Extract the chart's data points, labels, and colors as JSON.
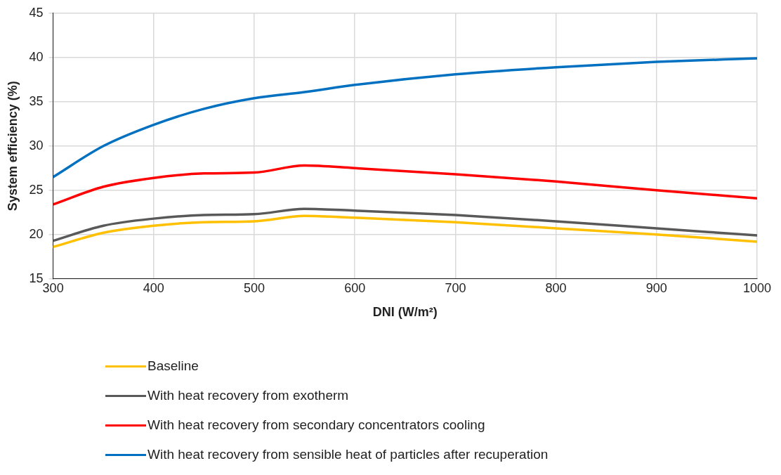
{
  "chart_data": {
    "type": "line",
    "xlabel": "DNI (W/m²)",
    "ylabel": "System efficiency (%)",
    "x": [
      300,
      350,
      400,
      450,
      500,
      550,
      600,
      700,
      800,
      900,
      1000
    ],
    "series": [
      {
        "name": "Baseline",
        "color": "#ffc000",
        "values": [
          18.6,
          20.2,
          21.0,
          21.4,
          21.5,
          22.1,
          21.9,
          21.4,
          20.7,
          20.0,
          19.2
        ]
      },
      {
        "name": "With heat recovery from exotherm",
        "color": "#595959",
        "values": [
          19.3,
          21.0,
          21.8,
          22.2,
          22.3,
          22.9,
          22.7,
          22.2,
          21.5,
          20.7,
          19.9
        ]
      },
      {
        "name": "With heat recovery from secondary concentrators cooling",
        "color": "#ff0000",
        "values": [
          23.4,
          25.4,
          26.4,
          26.9,
          27.0,
          27.8,
          27.5,
          26.8,
          26.0,
          25.0,
          24.1
        ]
      },
      {
        "name": "With heat recovery from sensible heat of particles after recuperation",
        "color": "#0070c0",
        "values": [
          26.5,
          30.0,
          32.4,
          34.2,
          35.4,
          36.1,
          36.9,
          38.1,
          38.9,
          39.5,
          39.9
        ]
      }
    ],
    "xlim": [
      300,
      1000
    ],
    "xticks": [
      300,
      400,
      500,
      600,
      700,
      800,
      900,
      1000
    ],
    "ylim": [
      15,
      45
    ],
    "yticks": [
      15,
      20,
      25,
      30,
      35,
      40,
      45
    ],
    "grid": true,
    "legend": "bottom",
    "marker": "none",
    "line_style": "solid"
  }
}
